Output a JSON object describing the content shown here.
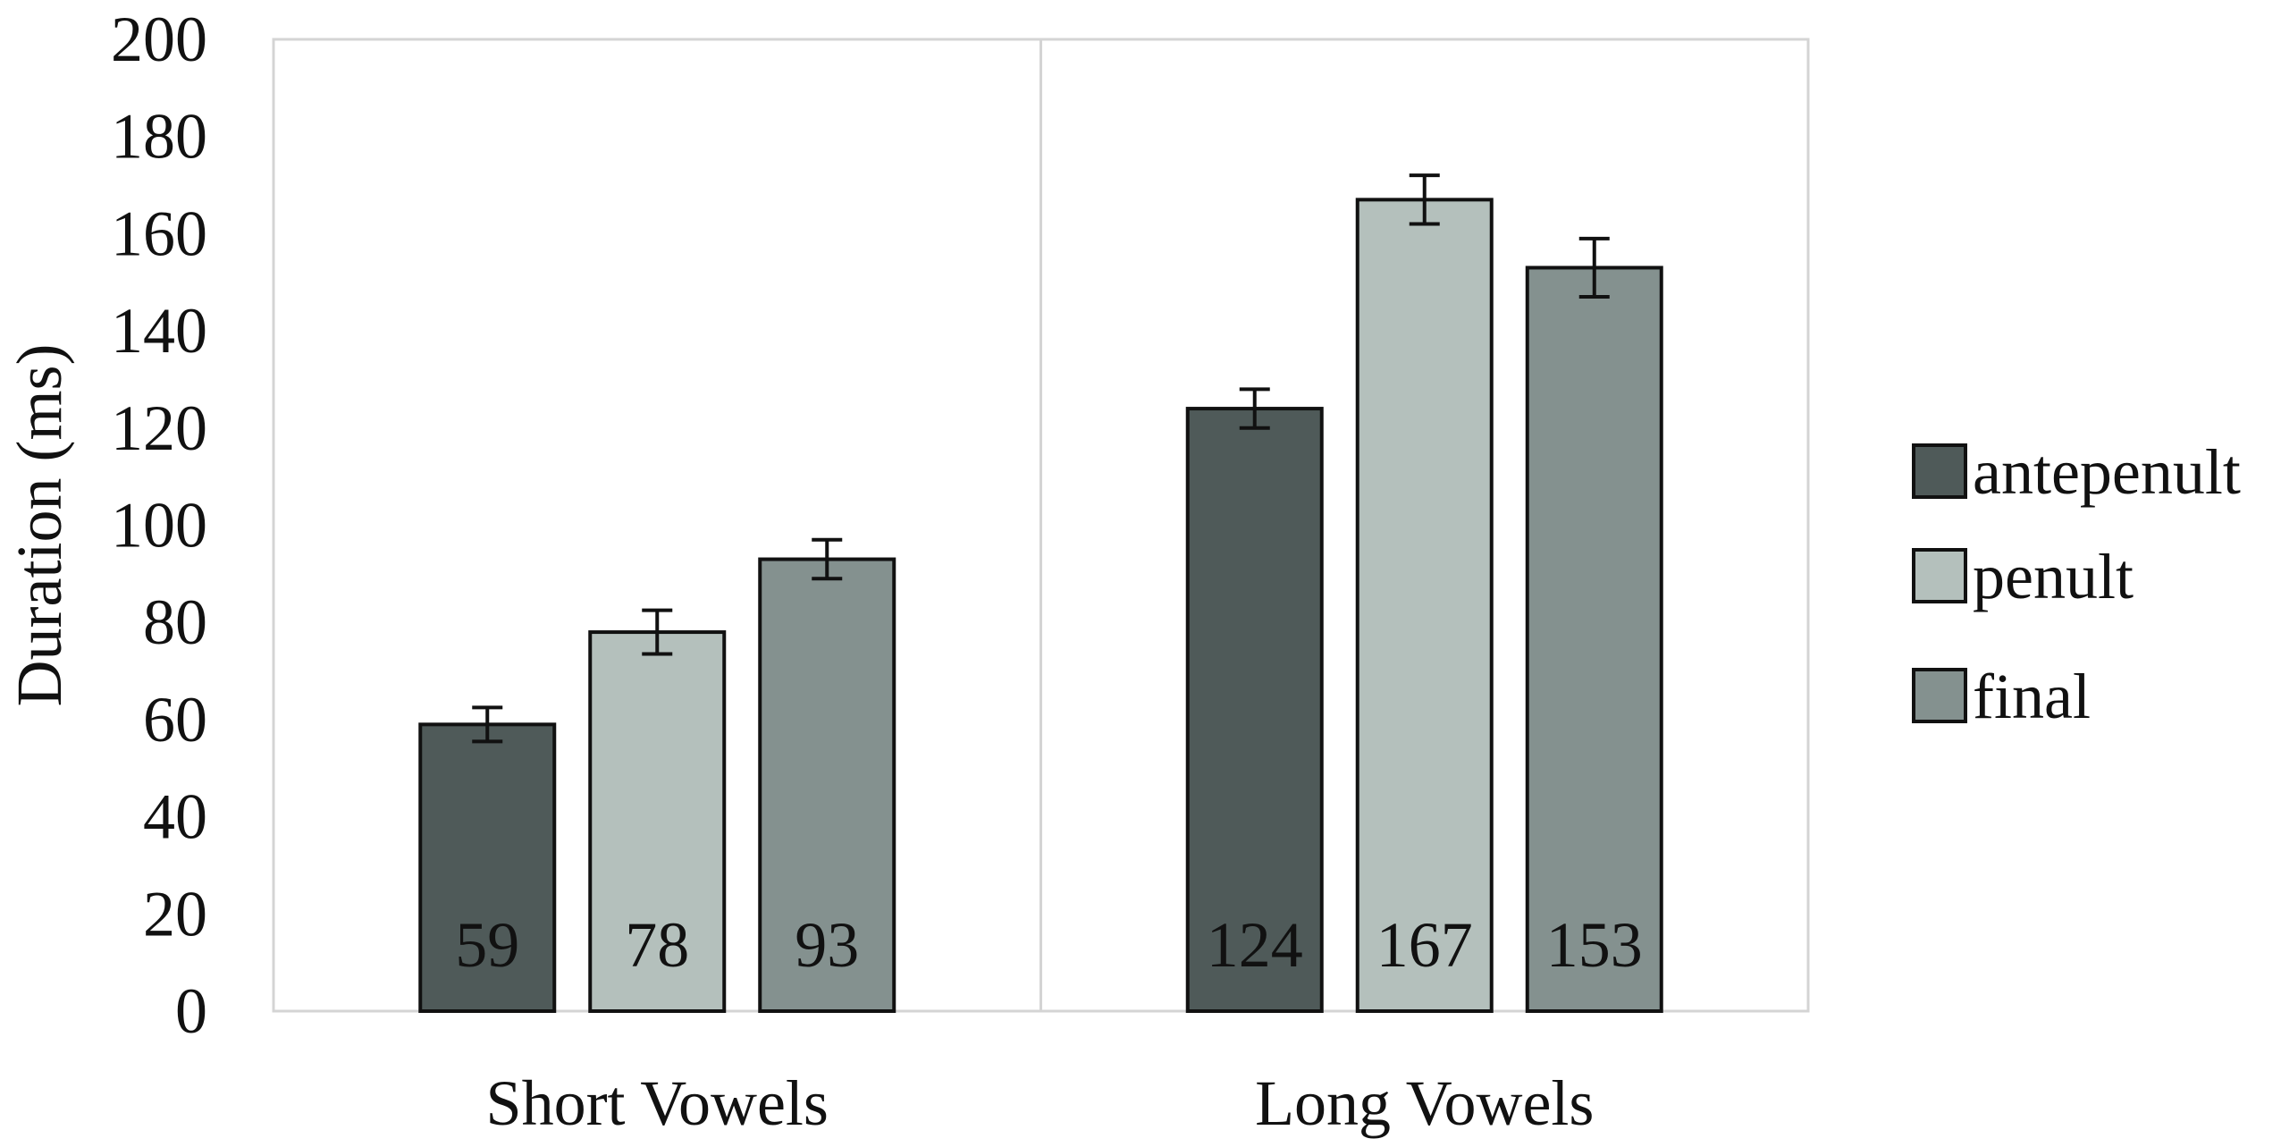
{
  "chart_data": {
    "type": "bar",
    "title": "",
    "xlabel": "",
    "ylabel": "Duration (ms)",
    "ylim": [
      0,
      200
    ],
    "ytick_step": 20,
    "yticks": [
      "0",
      "20",
      "40",
      "60",
      "80",
      "100",
      "120",
      "140",
      "160",
      "180",
      "200"
    ],
    "categories": [
      "Short Vowels",
      "Long Vowels"
    ],
    "series": [
      {
        "name": "antepenult",
        "color": "#4f5a59",
        "values": [
          59,
          124
        ],
        "labels": [
          "59",
          "124"
        ],
        "error": [
          3.5,
          4
        ]
      },
      {
        "name": "penult",
        "color": "#b4c0bc",
        "values": [
          78,
          167
        ],
        "labels": [
          "78",
          "167"
        ],
        "error": [
          4.5,
          5
        ]
      },
      {
        "name": "final",
        "color": "#84918f",
        "values": [
          93,
          153
        ],
        "labels": [
          "93",
          "153"
        ],
        "error": [
          4,
          6
        ]
      }
    ],
    "grid": false,
    "category_separators": true,
    "legend": {
      "position": "right"
    }
  }
}
